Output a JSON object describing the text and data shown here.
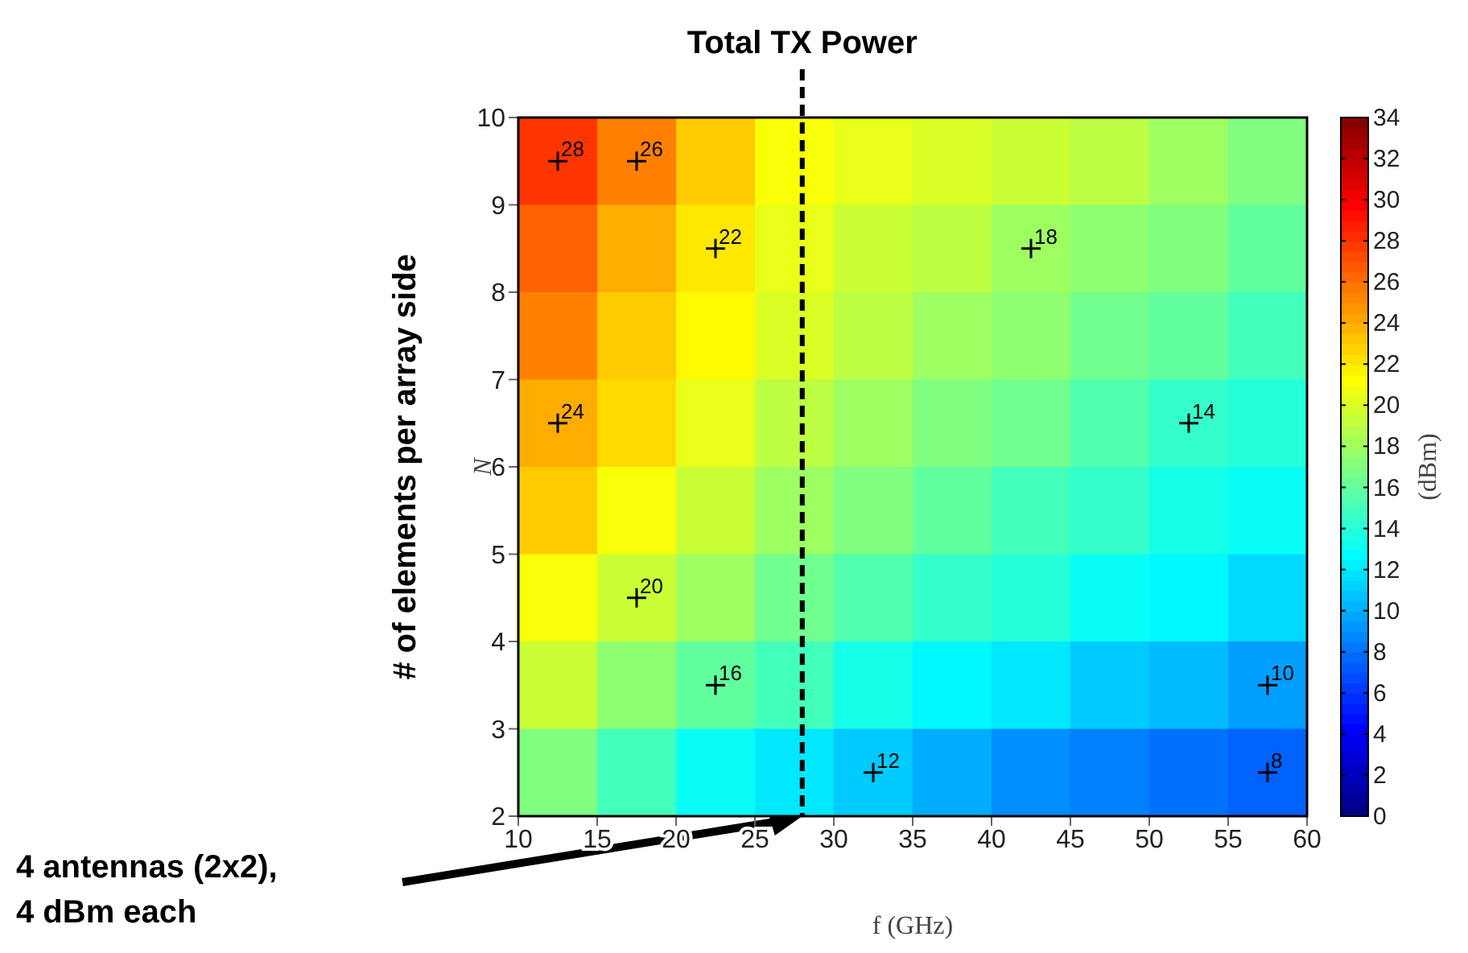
{
  "chart_data": {
    "type": "heatmap",
    "xlabel": "f (GHz)",
    "ylabel": "N",
    "clabel": "(dBm)",
    "x": [
      12.5,
      17.5,
      22.5,
      27.5,
      32.5,
      37.5,
      42.5,
      47.5,
      52.5,
      57.5
    ],
    "y": [
      9.5,
      8.5,
      7.5,
      6.5,
      5.5,
      4.5,
      3.5,
      2.5
    ],
    "xlim": [
      10,
      60
    ],
    "xticks": [
      10,
      15,
      20,
      25,
      30,
      35,
      40,
      45,
      50,
      55,
      60
    ],
    "ylim": [
      2,
      10
    ],
    "yticks": [
      2,
      3,
      4,
      5,
      6,
      7,
      8,
      9,
      10
    ],
    "cells": [
      [
        28,
        25.5,
        23,
        21,
        20.5,
        20,
        19.5,
        19,
        18,
        17
      ],
      [
        26.5,
        24,
        22,
        20.5,
        19.5,
        19,
        18,
        17.5,
        17,
        16
      ],
      [
        25.5,
        23,
        21.5,
        20,
        19,
        18,
        17.5,
        16.5,
        16,
        15
      ],
      [
        24,
        22.5,
        20.5,
        19,
        18,
        17,
        16.5,
        15.5,
        14.5,
        14
      ],
      [
        23,
        21,
        19.5,
        18,
        17,
        16,
        15,
        14.5,
        13.5,
        13
      ],
      [
        21,
        19.5,
        18,
        16.5,
        15.5,
        14.5,
        14,
        13,
        12.5,
        11.5
      ],
      [
        19.5,
        17.5,
        16,
        15,
        13.5,
        12.5,
        12,
        11,
        10.5,
        9.5
      ],
      [
        17,
        15,
        13,
        12,
        11,
        10,
        9,
        8.5,
        8,
        7.5
      ]
    ],
    "clim": [
      0,
      34
    ],
    "cticks": [
      0,
      2,
      4,
      6,
      8,
      10,
      12,
      14,
      16,
      18,
      20,
      22,
      24,
      26,
      28,
      30,
      32,
      34
    ],
    "ref_lines": [
      {
        "axis": "x",
        "value": 28,
        "label": "Total TX Power",
        "color": "#000000",
        "line_style": "dashed"
      }
    ],
    "annotations": [
      {
        "text": "28",
        "x": 12.5,
        "y": 9.5
      },
      {
        "text": "26",
        "x": 17.5,
        "y": 9.5
      },
      {
        "text": "22",
        "x": 22.5,
        "y": 8.5
      },
      {
        "text": "18",
        "x": 42.5,
        "y": 8.5
      },
      {
        "text": "24",
        "x": 12.5,
        "y": 6.5
      },
      {
        "text": "14",
        "x": 52.5,
        "y": 6.5
      },
      {
        "text": "20",
        "x": 17.5,
        "y": 4.5
      },
      {
        "text": "10",
        "x": 57.5,
        "y": 3.5
      },
      {
        "text": "16",
        "x": 22.5,
        "y": 3.5
      },
      {
        "text": "12",
        "x": 32.5,
        "y": 2.5
      },
      {
        "text": "8",
        "x": 57.5,
        "y": 2.5
      },
      "4 antennas (2x2),\n4 dBm each",
      "# of elements per array side"
    ]
  }
}
